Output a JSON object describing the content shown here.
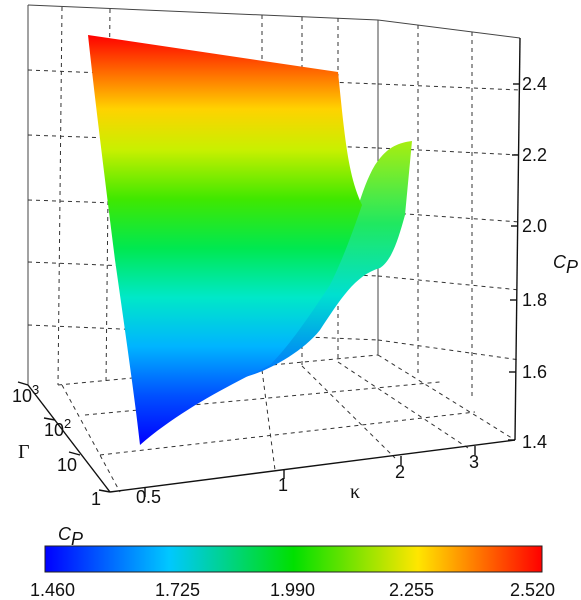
{
  "chart_data": {
    "type": "surface",
    "zlabel_main": "C",
    "zlabel_sub": "P",
    "xlabel": "κ",
    "ylabel": "Γ",
    "x_ticks": [
      "0.5",
      "1",
      "2",
      "3"
    ],
    "x_tick_values": [
      0.5,
      1,
      2,
      3
    ],
    "y_ticks_base": [
      "10",
      "10",
      "10",
      "1"
    ],
    "y_ticks_exp": [
      "3",
      "2",
      "",
      ""
    ],
    "y_tick_values": [
      1000,
      100,
      10,
      1
    ],
    "z_ticks": [
      "1.4",
      "1.6",
      "1.8",
      "2.0",
      "2.2",
      "2.4"
    ],
    "z_tick_values": [
      1.4,
      1.6,
      1.8,
      2.0,
      2.2,
      2.4
    ],
    "zlim": [
      1.4,
      2.52
    ],
    "surface_edges": {
      "gamma_1000_vs_kappa": {
        "kappa": [
          0.5,
          3.0
        ],
        "cp": [
          2.5,
          2.44
        ]
      },
      "kappa_0.5_vs_gamma": {
        "gamma": [
          1000,
          1
        ],
        "cp": [
          2.5,
          1.46
        ]
      },
      "gamma_1_vs_kappa": {
        "kappa": [
          0.5,
          1.0,
          1.5,
          2.0,
          2.5,
          3.0
        ],
        "cp": [
          1.46,
          1.62,
          1.78,
          1.93,
          2.06,
          2.2
        ]
      }
    },
    "colorbar": {
      "label_main": "C",
      "label_sub": "P",
      "min": 1.46,
      "max": 2.52,
      "tick_labels": [
        "1.460",
        "1.725",
        "1.990",
        "2.255",
        "2.520"
      ],
      "colors": [
        "#0000ff",
        "#00c8ff",
        "#00e000",
        "#ffe600",
        "#ff0000"
      ]
    },
    "grid": true
  }
}
